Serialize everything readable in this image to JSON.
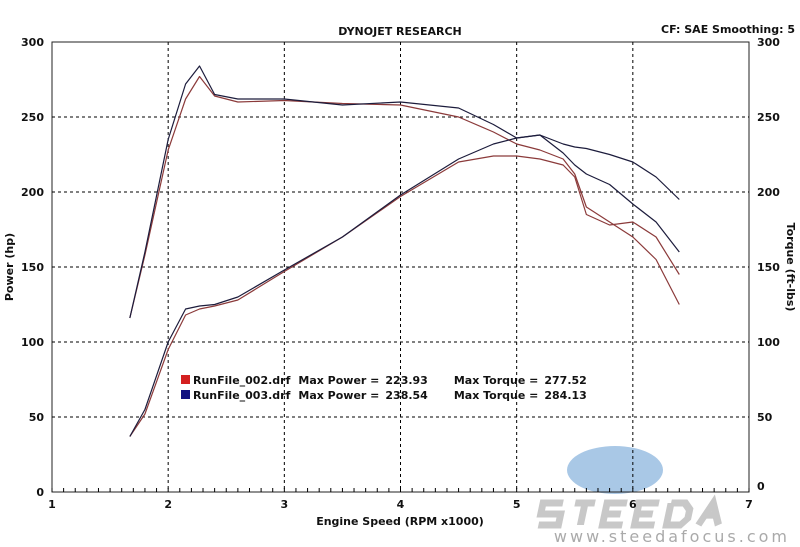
{
  "header": {
    "title": "DYNOJET RESEARCH",
    "settings": "CF: SAE  Smoothing: 5"
  },
  "logo": {
    "brand": "STEEDA",
    "url": "www.steedafocus.com"
  },
  "chart_data": {
    "type": "line",
    "title": "DYNOJET RESEARCH",
    "xlabel": "Engine Speed (RPM x1000)",
    "ylabel": "Power (hp)",
    "y2label": "Torque (ft-lbs)",
    "xlim": [
      1,
      7
    ],
    "ylim": [
      0,
      300
    ],
    "y2lim": [
      0,
      300
    ],
    "xticks": [
      1,
      2,
      3,
      4,
      5,
      6,
      7
    ],
    "yticks": [
      0,
      50,
      100,
      150,
      200,
      250,
      300
    ],
    "grid": true,
    "legend_position": "bottom-left",
    "x": [
      1.67,
      1.8,
      2.0,
      2.15,
      2.27,
      2.4,
      2.6,
      3.0,
      3.5,
      4.0,
      4.5,
      4.8,
      5.0,
      5.2,
      5.4,
      5.5,
      5.6,
      5.8,
      6.0,
      6.2,
      6.4
    ],
    "series": [
      {
        "name": "RunFile_002.drf",
        "kind": "torque",
        "color": "#8b3a3a",
        "values": [
          116,
          158,
          228,
          262,
          277,
          264,
          260,
          261,
          259,
          258,
          250,
          240,
          232,
          228,
          222,
          212,
          190,
          180,
          170,
          155,
          125
        ]
      },
      {
        "name": "RunFile_003.drf",
        "kind": "torque",
        "color": "#1c1c3c",
        "values": [
          116,
          160,
          235,
          272,
          284,
          265,
          262,
          262,
          258,
          260,
          256,
          245,
          236,
          238,
          226,
          218,
          212,
          205,
          192,
          180,
          160
        ]
      },
      {
        "name": "RunFile_002.drf",
        "kind": "power",
        "color": "#8b3a3a",
        "values": [
          37,
          52,
          95,
          118,
          122,
          124,
          128,
          147,
          170,
          197,
          220,
          224,
          224,
          222,
          218,
          210,
          185,
          178,
          180,
          170,
          145
        ]
      },
      {
        "name": "RunFile_003.drf",
        "kind": "power",
        "color": "#1c1c3c",
        "values": [
          37,
          55,
          100,
          122,
          124,
          125,
          130,
          148,
          170,
          198,
          222,
          232,
          236,
          238,
          232,
          230,
          229,
          225,
          220,
          210,
          195
        ]
      }
    ],
    "legend": [
      {
        "file": "RunFile_002.drf",
        "power_label": "Max Power =",
        "power": "223.93",
        "torque_label": "Max Torque =",
        "torque": "277.52",
        "color": "#d42020"
      },
      {
        "file": "RunFile_003.drf",
        "power_label": "Max Power =",
        "power": "238.54",
        "torque_label": "Max Torque =",
        "torque": "284.13",
        "color": "#101080"
      }
    ]
  }
}
